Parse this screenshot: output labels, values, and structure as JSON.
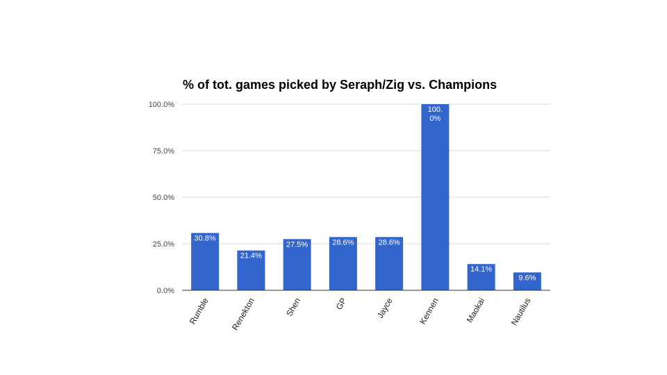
{
  "chart_data": {
    "type": "bar",
    "title": "% of tot. games picked by Seraph/Zig vs. Champions",
    "xlabel": "",
    "ylabel": "",
    "categories": [
      "Rumble",
      "Renekton",
      "Shen",
      "GP",
      "Jayce",
      "Kennen",
      "Maokai",
      "Nautilus"
    ],
    "values": [
      30.8,
      21.4,
      27.5,
      28.6,
      28.6,
      100.0,
      14.1,
      9.6
    ],
    "data_labels": [
      "30.8%",
      "21.4%",
      "27.5%",
      "28.6%",
      "28.6%",
      "100.0%",
      "14.1%",
      "9.6%"
    ],
    "ylim": [
      0,
      100
    ],
    "yticks": [
      0,
      25,
      50,
      75,
      100
    ],
    "ytick_labels": [
      "0.0%",
      "25.0%",
      "50.0%",
      "75.0%",
      "100.0%"
    ],
    "grid": true,
    "legend": "none",
    "bar_color": "#3366cc"
  }
}
